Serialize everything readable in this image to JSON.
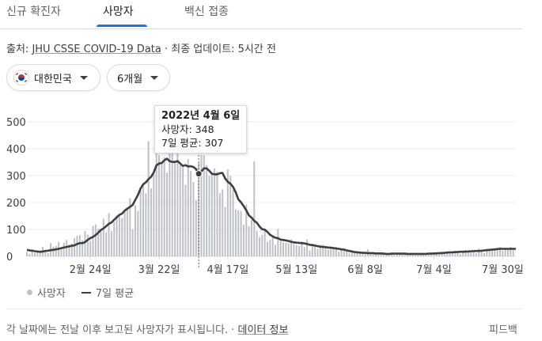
{
  "tabs": [
    {
      "label": "신규 확진자",
      "active": false
    },
    {
      "label": "사망자",
      "active": true
    },
    {
      "label": "백신 접종",
      "active": false
    }
  ],
  "source": {
    "prefix": "출처: ",
    "link": "JHU CSSE COVID-19 Data",
    "suffix": " · 최종 업데이트: 5시간 전"
  },
  "filters": {
    "country": "대한민국",
    "range": "6개월"
  },
  "tooltip": {
    "date": "2022년 4월 6일",
    "deaths": "사망자: 348",
    "avg": "7일 평균: 307"
  },
  "legend": {
    "bars": "사망자",
    "line": "7일 평균"
  },
  "footer": {
    "text": "각 날짜에는 전날 이후 보고된 사망자가 표시됩니다. · ",
    "link": "데이터 정보",
    "feedback": "피드백"
  },
  "colors": {
    "bar": "#bdc1c6",
    "line": "#3c4043",
    "accent": "#1a73e8"
  },
  "chart_data": {
    "type": "bar",
    "yticks": [
      0,
      100,
      200,
      300,
      400,
      500
    ],
    "ylim": [
      0,
      500
    ],
    "xtick_labels": [
      "2월 24일",
      "3월 22일",
      "4월 17일",
      "5월 13일",
      "6월 8일",
      "7월 4일",
      "7월 30일"
    ],
    "xtick_days": [
      24,
      50,
      76,
      102,
      128,
      154,
      180
    ],
    "day_range": [
      0,
      185
    ],
    "highlight": {
      "day": 65,
      "label": "2022년 4월 6일",
      "deaths": 348,
      "avg": 307
    },
    "series": [
      {
        "name": "사망자",
        "kind": "bar",
        "values": [
          17,
          10,
          26,
          13,
          22,
          16,
          35,
          20,
          12,
          49,
          36,
          39,
          54,
          24,
          51,
          61,
          44,
          47,
          68,
          76,
          79,
          60,
          94,
          81,
          57,
          113,
          119,
          103,
          99,
          140,
          89,
          160,
          94,
          128,
          152,
          148,
          142,
          174,
          179,
          216,
          101,
          190,
          169,
          255,
          263,
          234,
          428,
          253,
          313,
          386,
          376,
          346,
          368,
          311,
          430,
          405,
          356,
          396,
          339,
          331,
          266,
          361,
          318,
          276,
          210,
          348,
          377,
          375,
          339,
          299,
          307,
          327,
          315,
          234,
          249,
          183,
          323,
          299,
          247,
          174,
          172,
          168,
          117,
          193,
          112,
          136,
          353,
          95,
          72,
          80,
          101,
          54,
          61,
          74,
          43,
          102,
          56,
          52,
          51,
          49,
          63,
          46,
          42,
          39,
          55,
          35,
          63,
          22,
          42,
          42,
          27,
          43,
          43,
          31,
          25,
          33,
          29,
          35,
          18,
          30,
          31,
          25,
          13,
          23,
          19,
          13,
          12,
          12,
          10,
          26,
          9,
          9,
          9,
          14,
          12,
          8,
          10,
          8,
          12,
          5,
          11,
          11,
          9,
          14,
          11,
          7,
          7,
          9,
          12,
          9,
          8,
          9,
          6,
          12,
          8,
          14,
          12,
          18,
          9,
          11,
          14,
          17,
          15,
          20,
          9,
          17,
          23,
          14,
          21,
          25,
          11,
          29,
          23,
          13,
          28,
          27,
          26,
          26,
          22,
          35,
          21,
          28,
          25,
          36,
          24
        ]
      },
      {
        "name": "7일 평균",
        "kind": "line",
        "values": [
          24,
          22,
          21,
          19,
          18,
          17,
          18,
          20,
          21,
          23,
          24,
          26,
          28,
          30,
          33,
          35,
          37,
          39,
          41,
          46,
          49,
          49,
          53,
          61,
          68,
          72,
          79,
          88,
          98,
          104,
          112,
          121,
          126,
          136,
          145,
          154,
          159,
          170,
          177,
          184,
          191,
          210,
          228,
          252,
          268,
          275,
          287,
          296,
          312,
          338,
          345,
          347,
          357,
          363,
          354,
          351,
          351,
          354,
          345,
          336,
          339,
          334,
          335,
          332,
          324,
          307,
          316,
          327,
          327,
          318,
          307,
          305,
          305,
          309,
          310,
          290,
          277,
          270,
          258,
          238,
          212,
          201,
          187,
          171,
          152,
          144,
          132,
          125,
          111,
          101,
          99,
          91,
          80,
          74,
          69,
          67,
          62,
          61,
          59,
          57,
          54,
          52,
          51,
          50,
          49,
          48,
          46,
          43,
          42,
          40,
          38,
          36,
          35,
          34,
          33,
          32,
          31,
          29,
          28,
          26,
          25,
          22,
          20,
          18,
          16,
          15,
          14,
          13,
          13,
          12,
          12,
          12,
          11,
          11,
          11,
          10,
          9,
          9,
          10,
          10,
          10,
          10,
          10,
          10,
          9,
          9,
          9,
          9,
          9,
          9,
          9,
          9,
          10,
          10,
          11,
          11,
          12,
          12,
          13,
          14,
          15,
          15,
          16,
          16,
          17,
          17,
          18,
          18,
          19,
          19,
          20,
          20,
          21,
          22,
          23,
          24,
          25,
          26,
          27,
          28,
          28,
          28,
          28,
          28,
          28,
          28
        ]
      }
    ]
  }
}
